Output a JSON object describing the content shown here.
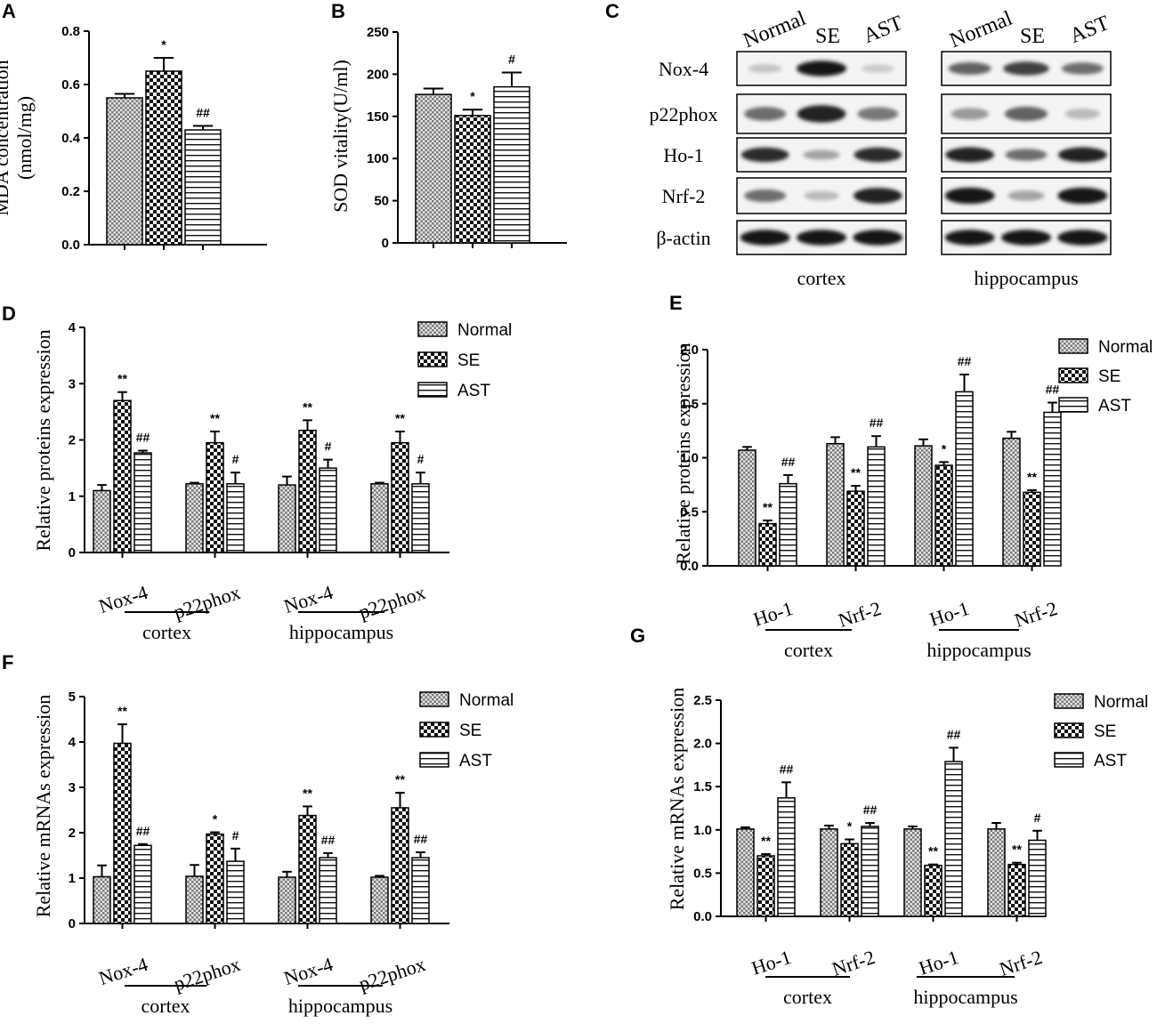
{
  "chart_data": [
    {
      "id": "A",
      "type": "bar",
      "panel_label": "A",
      "ylabel_lines": [
        "MDA concentration",
        "(nmol/mg)"
      ],
      "ylim": [
        0,
        0.8
      ],
      "yticks": [
        "0.0",
        "0.2",
        "0.4",
        "0.6",
        "0.8"
      ],
      "groups": [
        {
          "category": "",
          "bars": [
            {
              "series": "Normal",
              "value": 0.55,
              "error": 0.015,
              "sig": ""
            },
            {
              "series": "SE",
              "value": 0.65,
              "error": 0.05,
              "sig": "*"
            },
            {
              "series": "AST",
              "value": 0.43,
              "error": 0.015,
              "sig": "##"
            }
          ]
        }
      ]
    },
    {
      "id": "B",
      "type": "bar",
      "panel_label": "B",
      "ylabel_lines": [
        "SOD vitality(U/ml)"
      ],
      "ylim": [
        0,
        250
      ],
      "yticks": [
        "0",
        "50",
        "100",
        "150",
        "200",
        "250"
      ],
      "groups": [
        {
          "category": "",
          "bars": [
            {
              "series": "Normal",
              "value": 176,
              "error": 7,
              "sig": ""
            },
            {
              "series": "SE",
              "value": 151,
              "error": 7,
              "sig": "*"
            },
            {
              "series": "AST",
              "value": 185,
              "error": 17,
              "sig": "#"
            }
          ]
        }
      ]
    },
    {
      "id": "D",
      "type": "bar",
      "panel_label": "D",
      "ylabel_lines": [
        "Relative proteins expression"
      ],
      "ylim": [
        0,
        4
      ],
      "yticks": [
        "0",
        "1",
        "2",
        "3",
        "4"
      ],
      "legend": [
        "Normal",
        "SE",
        "AST"
      ],
      "regions": [
        "cortex",
        "hippocampus"
      ],
      "groups": [
        {
          "category": "Nox-4",
          "bars": [
            {
              "series": "Normal",
              "value": 1.1,
              "error": 0.1,
              "sig": ""
            },
            {
              "series": "SE",
              "value": 2.7,
              "error": 0.15,
              "sig": "**"
            },
            {
              "series": "AST",
              "value": 1.77,
              "error": 0.04,
              "sig": "##"
            }
          ]
        },
        {
          "category": "p22phox",
          "bars": [
            {
              "series": "Normal",
              "value": 1.22,
              "error": 0.02,
              "sig": ""
            },
            {
              "series": "SE",
              "value": 1.95,
              "error": 0.2,
              "sig": "**"
            },
            {
              "series": "AST",
              "value": 1.22,
              "error": 0.2,
              "sig": "#"
            }
          ]
        },
        {
          "category": "Nox-4",
          "bars": [
            {
              "series": "Normal",
              "value": 1.2,
              "error": 0.15,
              "sig": ""
            },
            {
              "series": "SE",
              "value": 2.17,
              "error": 0.18,
              "sig": "**"
            },
            {
              "series": "AST",
              "value": 1.5,
              "error": 0.15,
              "sig": "#"
            }
          ]
        },
        {
          "category": "p22phox",
          "bars": [
            {
              "series": "Normal",
              "value": 1.22,
              "error": 0.02,
              "sig": ""
            },
            {
              "series": "SE",
              "value": 1.95,
              "error": 0.2,
              "sig": "**"
            },
            {
              "series": "AST",
              "value": 1.22,
              "error": 0.2,
              "sig": "#"
            }
          ]
        }
      ]
    },
    {
      "id": "E",
      "type": "bar",
      "panel_label": "E",
      "ylabel_lines": [
        "Relative proteins expression"
      ],
      "ylim": [
        0,
        2.0
      ],
      "yticks": [
        "0.0",
        "0.5",
        "1.0",
        "1.5",
        "2.0"
      ],
      "legend": [
        "Normal",
        "SE",
        "AST"
      ],
      "regions": [
        "cortex",
        "hippocampus"
      ],
      "groups": [
        {
          "category": "Ho-1",
          "bars": [
            {
              "series": "Normal",
              "value": 1.07,
              "error": 0.03,
              "sig": ""
            },
            {
              "series": "SE",
              "value": 0.39,
              "error": 0.03,
              "sig": "**"
            },
            {
              "series": "AST",
              "value": 0.76,
              "error": 0.08,
              "sig": "##"
            }
          ]
        },
        {
          "category": "Nrf-2",
          "bars": [
            {
              "series": "Normal",
              "value": 1.13,
              "error": 0.06,
              "sig": ""
            },
            {
              "series": "SE",
              "value": 0.69,
              "error": 0.05,
              "sig": "**"
            },
            {
              "series": "AST",
              "value": 1.1,
              "error": 0.1,
              "sig": "##"
            }
          ]
        },
        {
          "category": "Ho-1",
          "bars": [
            {
              "series": "Normal",
              "value": 1.11,
              "error": 0.06,
              "sig": ""
            },
            {
              "series": "SE",
              "value": 0.93,
              "error": 0.03,
              "sig": "*"
            },
            {
              "series": "AST",
              "value": 1.61,
              "error": 0.16,
              "sig": "##"
            }
          ]
        },
        {
          "category": "Nrf-2",
          "bars": [
            {
              "series": "Normal",
              "value": 1.18,
              "error": 0.06,
              "sig": ""
            },
            {
              "series": "SE",
              "value": 0.68,
              "error": 0.02,
              "sig": "**"
            },
            {
              "series": "AST",
              "value": 1.42,
              "error": 0.09,
              "sig": "##"
            }
          ]
        }
      ]
    },
    {
      "id": "F",
      "type": "bar",
      "panel_label": "F",
      "ylabel_lines": [
        "Relative mRNAs expression"
      ],
      "ylim": [
        0,
        5
      ],
      "yticks": [
        "0",
        "1",
        "2",
        "3",
        "4",
        "5"
      ],
      "legend": [
        "Normal",
        "SE",
        "AST"
      ],
      "regions": [
        "cortex",
        "hippocampus"
      ],
      "groups": [
        {
          "category": "Nox-4",
          "bars": [
            {
              "series": "Normal",
              "value": 1.03,
              "error": 0.25,
              "sig": ""
            },
            {
              "series": "SE",
              "value": 3.97,
              "error": 0.42,
              "sig": "**"
            },
            {
              "series": "AST",
              "value": 1.72,
              "error": 0.03,
              "sig": "##"
            }
          ]
        },
        {
          "category": "p22phox",
          "bars": [
            {
              "series": "Normal",
              "value": 1.04,
              "error": 0.25,
              "sig": ""
            },
            {
              "series": "SE",
              "value": 1.97,
              "error": 0.04,
              "sig": "*"
            },
            {
              "series": "AST",
              "value": 1.37,
              "error": 0.28,
              "sig": "#"
            }
          ]
        },
        {
          "category": "Nox-4",
          "bars": [
            {
              "series": "Normal",
              "value": 1.02,
              "error": 0.12,
              "sig": ""
            },
            {
              "series": "SE",
              "value": 2.38,
              "error": 0.2,
              "sig": "**"
            },
            {
              "series": "AST",
              "value": 1.45,
              "error": 0.1,
              "sig": "##"
            }
          ]
        },
        {
          "category": "p22phox",
          "bars": [
            {
              "series": "Normal",
              "value": 1.02,
              "error": 0.03,
              "sig": ""
            },
            {
              "series": "SE",
              "value": 2.55,
              "error": 0.33,
              "sig": "**"
            },
            {
              "series": "AST",
              "value": 1.45,
              "error": 0.12,
              "sig": "##"
            }
          ]
        }
      ]
    },
    {
      "id": "G",
      "type": "bar",
      "panel_label": "G",
      "ylabel_lines": [
        "Relative mRNAs expression"
      ],
      "ylim": [
        0,
        2.5
      ],
      "yticks": [
        "0.0",
        "0.5",
        "1.0",
        "1.5",
        "2.0",
        "2.5"
      ],
      "legend": [
        "Normal",
        "SE",
        "AST"
      ],
      "regions": [
        "cortex",
        "hippocampus"
      ],
      "groups": [
        {
          "category": "Ho-1",
          "bars": [
            {
              "series": "Normal",
              "value": 1.01,
              "error": 0.02,
              "sig": ""
            },
            {
              "series": "SE",
              "value": 0.7,
              "error": 0.02,
              "sig": "**"
            },
            {
              "series": "AST",
              "value": 1.37,
              "error": 0.18,
              "sig": "##"
            }
          ]
        },
        {
          "category": "Nrf-2",
          "bars": [
            {
              "series": "Normal",
              "value": 1.01,
              "error": 0.04,
              "sig": ""
            },
            {
              "series": "SE",
              "value": 0.84,
              "error": 0.05,
              "sig": "*"
            },
            {
              "series": "AST",
              "value": 1.04,
              "error": 0.04,
              "sig": "##"
            }
          ]
        },
        {
          "category": "Ho-1",
          "bars": [
            {
              "series": "Normal",
              "value": 1.01,
              "error": 0.03,
              "sig": ""
            },
            {
              "series": "SE",
              "value": 0.59,
              "error": 0.01,
              "sig": "**"
            },
            {
              "series": "AST",
              "value": 1.79,
              "error": 0.16,
              "sig": "##"
            }
          ]
        },
        {
          "category": "Nrf-2",
          "bars": [
            {
              "series": "Normal",
              "value": 1.01,
              "error": 0.07,
              "sig": ""
            },
            {
              "series": "SE",
              "value": 0.6,
              "error": 0.02,
              "sig": "**"
            },
            {
              "series": "AST",
              "value": 0.88,
              "error": 0.11,
              "sig": "#"
            }
          ]
        }
      ]
    }
  ],
  "blot": {
    "panel_label": "C",
    "columns": [
      "Normal",
      "SE",
      "AST"
    ],
    "rows": [
      "Nox-4",
      "p22phox",
      "Ho-1",
      "Nrf-2",
      "β-actin"
    ],
    "regions": [
      "cortex",
      "hippocampus"
    ],
    "intensity": {
      "cortex": [
        [
          0.15,
          0.95,
          0.12
        ],
        [
          0.55,
          0.9,
          0.5
        ],
        [
          0.85,
          0.3,
          0.85
        ],
        [
          0.55,
          0.2,
          0.9
        ],
        [
          0.95,
          0.95,
          0.95
        ]
      ],
      "hippocampus": [
        [
          0.6,
          0.75,
          0.55
        ],
        [
          0.35,
          0.6,
          0.2
        ],
        [
          0.9,
          0.55,
          0.9
        ],
        [
          0.95,
          0.3,
          0.95
        ],
        [
          0.95,
          0.95,
          0.95
        ]
      ]
    }
  },
  "colors": {
    "bar_edge": "#000000",
    "ink": "#000000",
    "background": "#ffffff"
  }
}
